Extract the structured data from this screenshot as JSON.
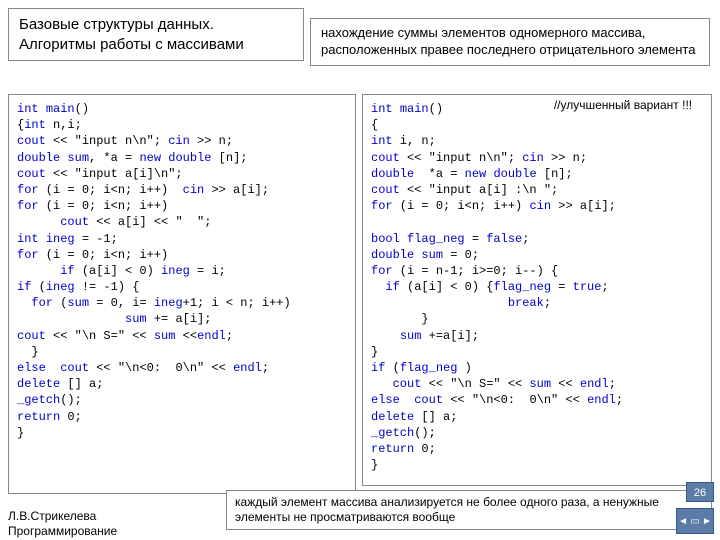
{
  "title": {
    "line1": "Базовые структуры данных.",
    "line2": "Алгоритмы работы с массивами"
  },
  "desc": "нахождение суммы элементов одномерного массива, расположенных правее последнего отрицательного элемента",
  "comment": "//улучшенный вариант !!!",
  "code_left": "int main()\n{int n,i;\ncout << \"input n\\n\"; cin >> n;\ndouble sum, *a = new double [n];\ncout << \"input a[i]\\n\";\nfor (i = 0; i<n; i++)  cin >> a[i];\nfor (i = 0; i<n; i++)\n      cout << a[i] << \"  \";\nint ineg = -1;\nfor (i = 0; i<n; i++)\n      if (a[i] < 0) ineg = i;\nif (ineg != -1) {\n  for (sum = 0, i= ineg+1; i < n; i++)\n               sum += a[i];\ncout << \"\\n S=\" << sum <<endl;\n  }\nelse  cout << \"\\n<0:  0\\n\" << endl;\ndelete [] a;\n_getch();\nreturn 0;\n}",
  "code_right": "int main()\n{\nint i, n;\ncout << \"input n\\n\"; cin >> n;\ndouble  *a = new double [n];\ncout << \"input a[i] :\\n \";\nfor (i = 0; i<n; i++) cin >> a[i];\n\nbool flag_neg = false;\ndouble sum = 0;\nfor (i = n-1; i>=0; i--) {\n  if (a[i] < 0) {flag_neg = true;\n                   break;\n       }\n    sum +=a[i];\n}\nif (flag_neg )\n   cout << \"\\n S=\" << sum << endl;\nelse  cout << \"\\n<0:  0\\n\" << endl;\ndelete [] a;\n_getch();\nreturn 0;\n}",
  "bottom_note": "каждый элемент массива анализируется не более одного раза, а ненужные элементы не просматриваются вообще",
  "footer": {
    "line1": "Л.В.Стрикелева",
    "line2": "Программирование"
  },
  "page_num": "26",
  "style": {
    "kw_color": "#0000cc",
    "border_color": "#888888",
    "badge_bg": "#5b7ba8",
    "title_fontsize": 15,
    "code_fontsize": 12,
    "body_fontsize": 13
  }
}
